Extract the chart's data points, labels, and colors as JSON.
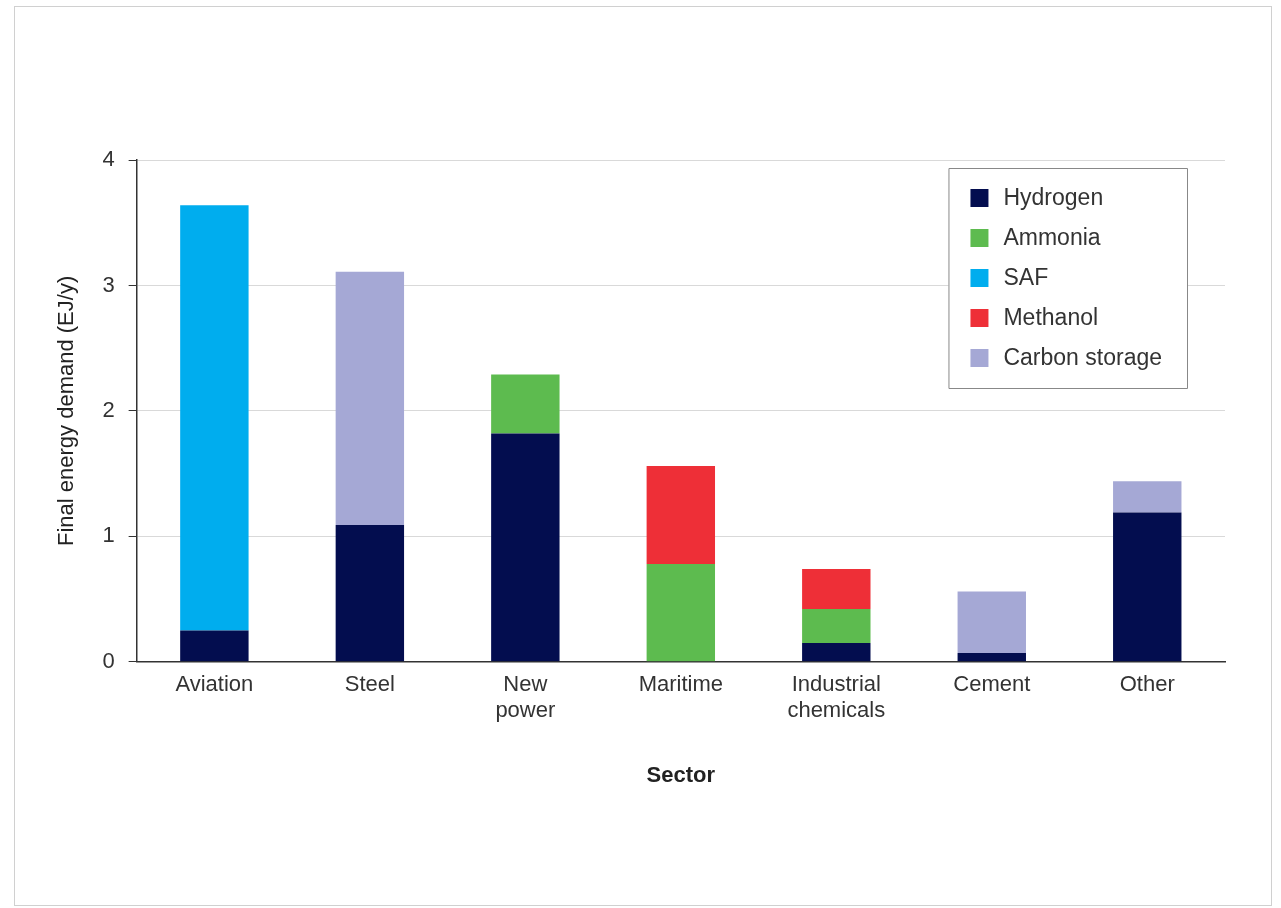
{
  "chart_data": {
    "type": "bar",
    "stacked": true,
    "xlabel": "Sector",
    "ylabel": "Final energy demand (EJ/y)",
    "categories": [
      "Aviation",
      "Steel",
      "New power",
      "Maritime",
      "Industrial chemicals",
      "Cement",
      "Other"
    ],
    "series": [
      {
        "name": "Hydrogen",
        "color": "#030d4f",
        "values": [
          0.25,
          1.09,
          1.82,
          null,
          0.15,
          0.07,
          1.19
        ]
      },
      {
        "name": "Ammonia",
        "color": "#5dbb4f",
        "values": [
          null,
          null,
          0.47,
          0.78,
          0.27,
          null,
          null
        ]
      },
      {
        "name": "SAF",
        "color": "#00adee",
        "values": [
          3.39,
          null,
          null,
          null,
          null,
          null,
          null
        ]
      },
      {
        "name": "Methanol",
        "color": "#ee2f37",
        "values": [
          null,
          null,
          null,
          0.78,
          0.32,
          null,
          null
        ]
      },
      {
        "name": "Carbon storage",
        "color": "#a5a8d5",
        "values": [
          null,
          2.02,
          null,
          null,
          null,
          0.49,
          0.25
        ]
      }
    ],
    "ylim": [
      0,
      4
    ],
    "yticks": [
      0,
      1,
      2,
      3,
      4
    ],
    "grid": "y",
    "legend": "top right"
  }
}
